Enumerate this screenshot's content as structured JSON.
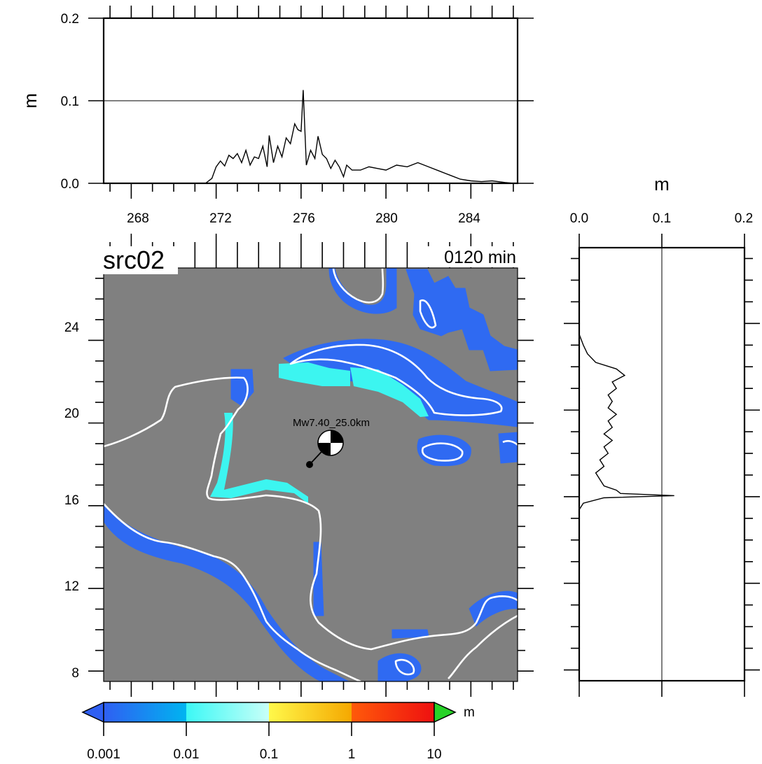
{
  "chart_data": {
    "type": "line",
    "label": {
      "source": "src02",
      "time": "0120 min",
      "event": "Mw7.40_25.0km"
    },
    "top_panel": {
      "ylabel": "m",
      "ylim": [
        0,
        0.2
      ],
      "yticks": [
        "0.0",
        "0.1",
        "0.2"
      ],
      "xlim": [
        266.7,
        286.2
      ],
      "xticks": [
        "268",
        "272",
        "276",
        "280",
        "284"
      ],
      "reference_line": 0.1,
      "x": [
        271.5,
        271.8,
        272.0,
        272.2,
        272.4,
        272.6,
        272.8,
        273.0,
        273.2,
        273.4,
        273.6,
        273.8,
        274.0,
        274.2,
        274.4,
        274.5,
        274.7,
        274.9,
        275.1,
        275.3,
        275.5,
        275.7,
        275.85,
        276.0,
        276.1,
        276.25,
        276.45,
        276.65,
        276.8,
        277.0,
        277.2,
        277.4,
        277.6,
        277.8,
        278.0,
        278.15,
        278.4,
        278.8,
        279.2,
        279.6,
        280.0,
        280.5,
        281.0,
        281.5,
        282.0,
        282.5,
        283.0,
        283.5,
        284.0,
        284.5,
        285.0,
        285.6,
        286.0
      ],
      "y": [
        0.0,
        0.006,
        0.02,
        0.027,
        0.021,
        0.034,
        0.03,
        0.036,
        0.025,
        0.04,
        0.022,
        0.032,
        0.03,
        0.045,
        0.02,
        0.058,
        0.025,
        0.045,
        0.032,
        0.055,
        0.048,
        0.072,
        0.065,
        0.063,
        0.113,
        0.022,
        0.04,
        0.03,
        0.057,
        0.035,
        0.03,
        0.018,
        0.028,
        0.02,
        0.008,
        0.022,
        0.016,
        0.016,
        0.02,
        0.018,
        0.016,
        0.022,
        0.02,
        0.025,
        0.02,
        0.015,
        0.01,
        0.005,
        0.003,
        0.002,
        0.003,
        0.001,
        0.0
      ]
    },
    "map_panel": {
      "xlim": [
        266.7,
        286.2
      ],
      "ylim": [
        7.5,
        27.5
      ],
      "yticks": [
        "8",
        "12",
        "16",
        "20",
        "24"
      ],
      "epicenter": {
        "lon": 276.2,
        "lat": 17.5
      },
      "colorbar": {
        "unit": "m",
        "ticks": [
          "0.001",
          "0.01",
          "0.1",
          "1",
          "10"
        ],
        "colors": [
          "#2f5ff2",
          "#00b4f0",
          "#3cf8f5",
          "#c8fff8",
          "#fff84a",
          "#f5a800",
          "#ff5a0a",
          "#ee1010"
        ]
      }
    },
    "right_panel": {
      "xlabel": "m",
      "xlim": [
        0,
        0.2
      ],
      "xticks": [
        "0.0",
        "0.1",
        "0.2"
      ],
      "reference_line": 0.1,
      "lat": [
        15.4,
        15.7,
        15.95,
        16.05,
        16.15,
        16.3,
        16.5,
        16.8,
        17.1,
        17.4,
        17.7,
        18.0,
        18.3,
        18.6,
        18.9,
        19.2,
        19.5,
        19.8,
        20.1,
        20.4,
        20.7,
        21.0,
        21.3,
        21.6,
        21.9,
        22.2,
        22.6,
        23.0,
        23.5
      ],
      "values": [
        0.0,
        0.005,
        0.03,
        0.115,
        0.05,
        0.045,
        0.03,
        0.025,
        0.02,
        0.03,
        0.025,
        0.035,
        0.03,
        0.04,
        0.03,
        0.04,
        0.035,
        0.045,
        0.035,
        0.04,
        0.035,
        0.045,
        0.04,
        0.055,
        0.045,
        0.02,
        0.01,
        0.005,
        0.0
      ]
    }
  }
}
